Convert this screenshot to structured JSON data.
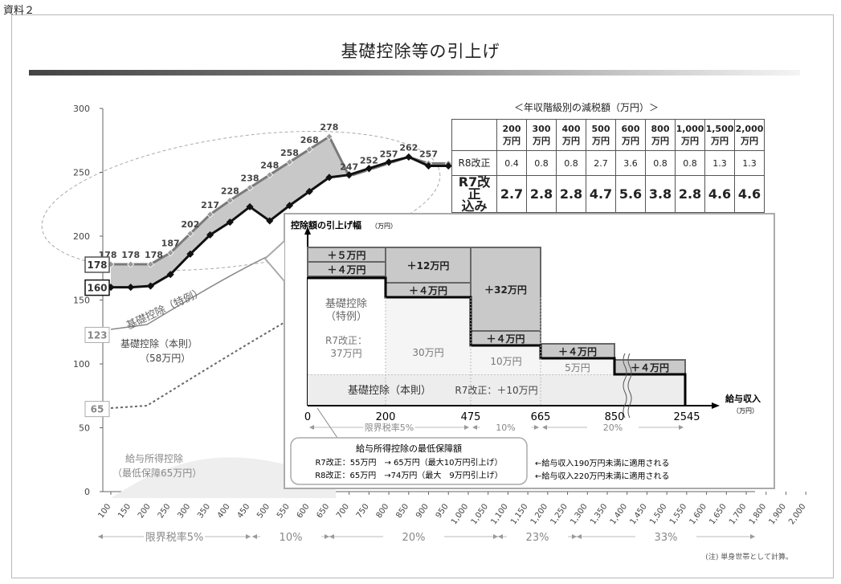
{
  "doc_label": "資料２",
  "title": "基礎控除等の引上げ",
  "note": "(注) 単身世帯として計算。",
  "table": {
    "title": "＜年収階級別の減税額（万円）＞",
    "headers": [
      [
        "200",
        "万円"
      ],
      [
        "300",
        "万円"
      ],
      [
        "400",
        "万円"
      ],
      [
        "500",
        "万円"
      ],
      [
        "600",
        "万円"
      ],
      [
        "800",
        "万円"
      ],
      [
        "1,000",
        "万円"
      ],
      [
        "1,500",
        "万円"
      ],
      [
        "2,000",
        "万円"
      ]
    ],
    "r8_label": "R8改正",
    "r8_values": [
      "0.4",
      "0.8",
      "0.8",
      "2.7",
      "3.6",
      "0.8",
      "0.8",
      "1.3",
      "1.3"
    ],
    "r7_label_1": "R7改正",
    "r7_label_2": "込み",
    "r7_values": [
      "2.7",
      "2.8",
      "2.8",
      "4.7",
      "5.6",
      "3.8",
      "2.8",
      "4.6",
      "4.6"
    ]
  },
  "chart_data": {
    "type": "line",
    "y_ticks": [
      "0",
      "50",
      "100",
      "150",
      "200",
      "250",
      "300"
    ],
    "ylim": [
      0,
      300
    ],
    "x_ticks": [
      "100",
      "150",
      "200",
      "250",
      "300",
      "350",
      "400",
      "450",
      "500",
      "550",
      "600",
      "650",
      "700",
      "750",
      "800",
      "850",
      "900",
      "950",
      "1,000",
      "1,050",
      "1,100",
      "1,150",
      "1,200",
      "1,250",
      "1,300",
      "1,350",
      "1,400",
      "1,450",
      "1,500",
      "1,550",
      "1,600",
      "1,650",
      "1,700",
      "1,800",
      "1,900",
      "2,000"
    ],
    "series": [
      {
        "name": "R8",
        "x": [
          100,
          150,
          200,
          250,
          300,
          350,
          400,
          450,
          500,
          550,
          600,
          650,
          700,
          750,
          800,
          850,
          900,
          950
        ],
        "values": [
          178,
          178,
          178,
          187,
          202,
          217,
          228,
          238,
          248,
          258,
          268,
          278,
          247,
          252,
          257,
          262,
          257,
          257
        ]
      },
      {
        "name": "R7",
        "x": [
          100,
          150,
          200,
          250,
          300,
          350,
          400,
          450,
          500,
          550,
          600,
          650,
          700,
          750,
          800,
          850,
          900,
          950
        ],
        "values": [
          160,
          160,
          161,
          170,
          186,
          201,
          211,
          223,
          212,
          224,
          235,
          246,
          248,
          253,
          258,
          262,
          255,
          255
        ]
      }
    ],
    "point_labels": [
      "178",
      "178",
      "178",
      "187",
      "202",
      "217",
      "228",
      "238",
      "248",
      "258",
      "268",
      "278",
      "247",
      "252",
      "257",
      "262",
      "257"
    ],
    "level_labels": [
      "178",
      "160",
      "123",
      "65"
    ],
    "curve_labels": {
      "tokurei": "基礎控除（特例）",
      "honsoku_1": "基礎控除（本則）",
      "honsoku_2": "（58万円）",
      "kyuyo_1": "給与所得控除",
      "kyuyo_2": "（最低保障65万円）"
    },
    "bracket_labels": [
      "限界税率5%",
      "10%",
      "20%",
      "23%",
      "33%"
    ]
  },
  "inset": {
    "axis_title": "控除額の引上げ幅",
    "axis_unit": "（万円）",
    "x_title": "給与収入",
    "x_unit": "（万円）",
    "x_ticks": [
      "0",
      "200",
      "475",
      "665",
      "850",
      "2545"
    ],
    "boxes": {
      "p5": "＋５万円",
      "p4a": "＋４万円",
      "p12": "＋12万円",
      "p4b": "＋４万円",
      "p32": "＋32万円",
      "p4c": "＋４万円",
      "p4d": "＋４万円",
      "p4e": "＋４万円"
    },
    "tokurei_1": "基礎控除",
    "tokurei_2": "（特例）",
    "r7_1": "R7改正：",
    "r7_2": "37万円",
    "v30": "30万円",
    "v10": "10万円",
    "v5": "5万円",
    "honsoku": "基礎控除（本則）",
    "honsoku_r7": "R7改正：＋10万円",
    "brackets": [
      "限界税率5%",
      "10%",
      "20%"
    ],
    "min_title": "給与所得控除の最低保障額",
    "min_r7": "R7改正：55万円　→ 65万円（最大10万円引上げ）",
    "min_r8": "R8改正：65万円　→74万円（最大　9万円引上げ）",
    "apply_r7": "←給与収入190万円未満に適用される",
    "apply_r8": "←給与収入220万円未満に適用される"
  }
}
